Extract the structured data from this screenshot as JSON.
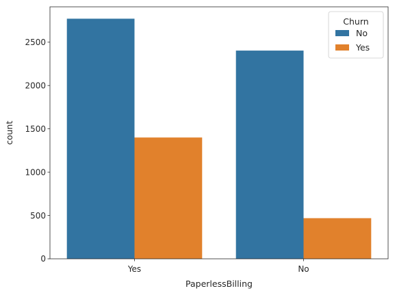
{
  "chart_data": {
    "type": "bar",
    "xlabel": "PaperlessBilling",
    "ylabel": "count",
    "categories": [
      "Yes",
      "No"
    ],
    "series": [
      {
        "name": "No",
        "color": "#3274a1",
        "values": [
          2771,
          2403
        ]
      },
      {
        "name": "Yes",
        "color": "#e1812c",
        "values": [
          1400,
          469
        ]
      }
    ],
    "ylim": [
      0,
      2908
    ],
    "yticks": [
      0,
      500,
      1000,
      1500,
      2000,
      2500
    ],
    "grid": false,
    "legend": {
      "title": "Churn",
      "placement": "top-right"
    }
  }
}
